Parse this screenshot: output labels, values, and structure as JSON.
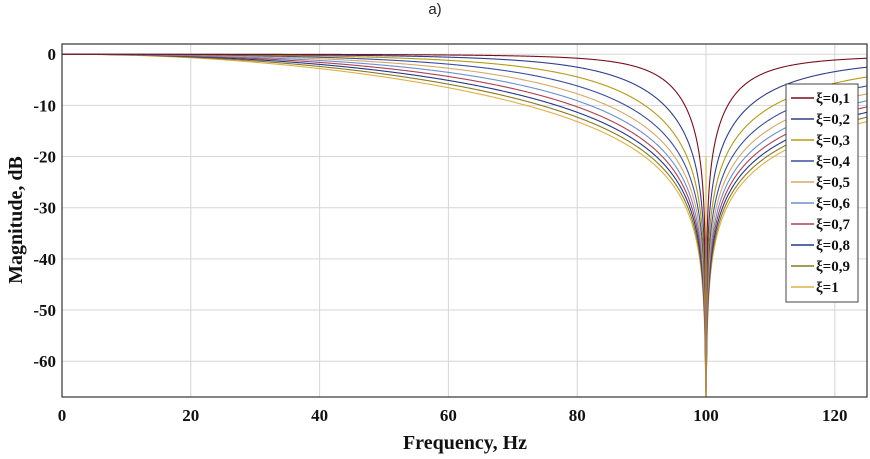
{
  "caption": "a)",
  "chart_data": {
    "type": "line",
    "xlabel": "Frequency, Hz",
    "ylabel": "Magnitude, dB",
    "xlim": [
      0,
      125
    ],
    "ylim": [
      -67,
      2
    ],
    "xticks": [
      0,
      20,
      40,
      60,
      80,
      100,
      120
    ],
    "yticks": [
      0,
      -10,
      -20,
      -30,
      -40,
      -50,
      -60
    ],
    "grid": true,
    "legend_position": "right",
    "notch_frequency_hz": 100,
    "series": [
      {
        "name": "ξ=0,1",
        "zeta": 0.1,
        "color": "#7a0f1c"
      },
      {
        "name": "ξ=0,2",
        "zeta": 0.2,
        "color": "#2f3f8c"
      },
      {
        "name": "ξ=0,3",
        "zeta": 0.3,
        "color": "#b59a12"
      },
      {
        "name": "ξ=0,4",
        "zeta": 0.4,
        "color": "#3a4f9e"
      },
      {
        "name": "ξ=0,5",
        "zeta": 0.5,
        "color": "#d8a868"
      },
      {
        "name": "ξ=0,6",
        "zeta": 0.6,
        "color": "#6a8fd0"
      },
      {
        "name": "ξ=0,7",
        "zeta": 0.7,
        "color": "#b04050"
      },
      {
        "name": "ξ=0,8",
        "zeta": 0.8,
        "color": "#1e3a8a"
      },
      {
        "name": "ξ=0,9",
        "zeta": 0.9,
        "color": "#8a7a20"
      },
      {
        "name": "ξ=1",
        "zeta": 1.0,
        "color": "#e0b040"
      }
    ]
  }
}
